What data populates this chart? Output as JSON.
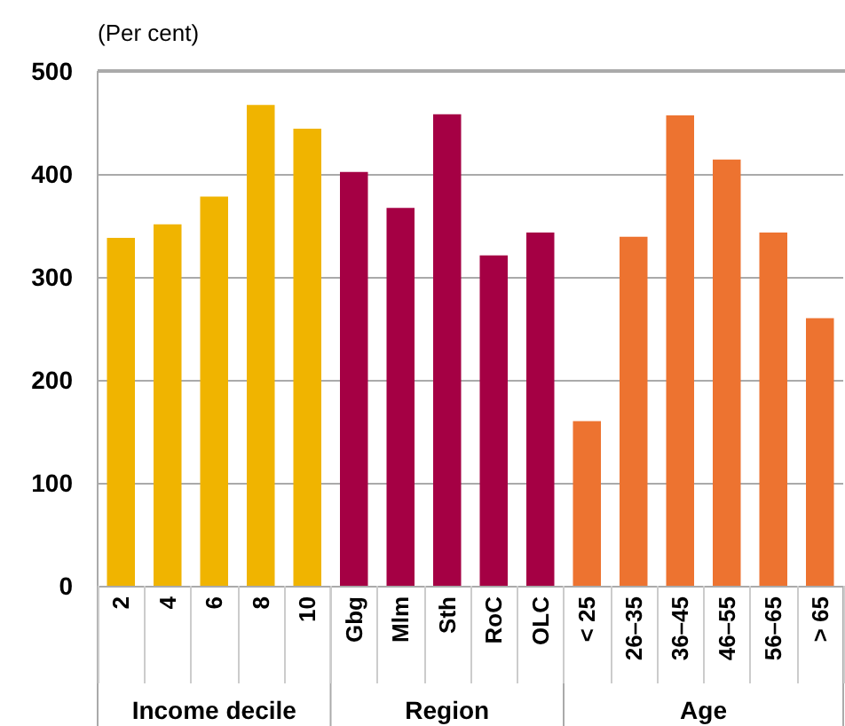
{
  "chart_data": {
    "type": "bar",
    "ylabel": "(Per cent)",
    "categories": [
      "2",
      "4",
      "6",
      "8",
      "10",
      "Gbg",
      "Mlm",
      "Sth",
      "RoC",
      "OLC",
      "< 25",
      "26–35",
      "36–45",
      "46–55",
      "56–65",
      "> 65"
    ],
    "series": [
      {
        "color": "#f0b400",
        "values": [
          338,
          351,
          378,
          467,
          444,
          null,
          null,
          null,
          null,
          null,
          null,
          null,
          null,
          null,
          null,
          null
        ]
      },
      {
        "color": "#a50044",
        "values": [
          null,
          null,
          null,
          null,
          null,
          402,
          367,
          458,
          321,
          343,
          null,
          null,
          null,
          null,
          null,
          null
        ]
      },
      {
        "color": "#ed7330",
        "values": [
          null,
          null,
          null,
          null,
          null,
          null,
          null,
          null,
          null,
          null,
          160,
          339,
          457,
          414,
          343,
          260
        ]
      }
    ],
    "annotations": [
      "Income decile",
      "Region",
      "Age"
    ],
    "ylim": [
      0,
      500
    ],
    "yticks": [
      0,
      100,
      200,
      300,
      400,
      500
    ],
    "grid": "y"
  }
}
